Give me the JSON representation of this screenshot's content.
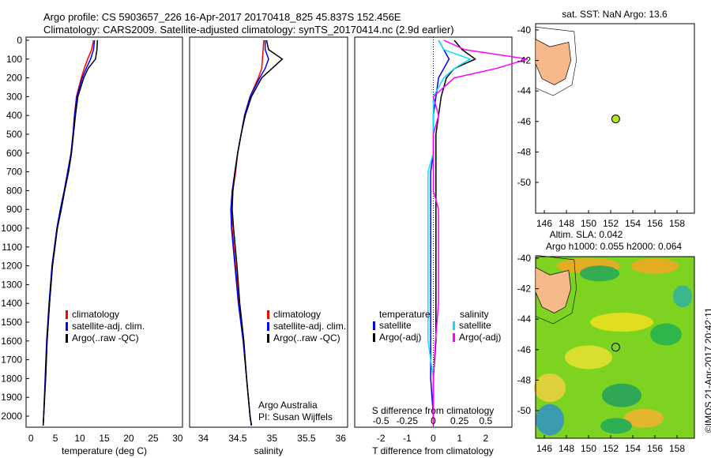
{
  "header": {
    "line1": "Argo profile: CS 5903657_226 16-Apr-2017 20170418_825 45.837S 152.456E",
    "line2": "Climatology: CARS2009. Satellite-adjusted climatology: synTS_20170414.nc (2.9d earlier)"
  },
  "colors": {
    "climatology": "#ff0000",
    "satellite": "#0000ff",
    "argo": "#000000",
    "sal_satellite": "#00e0ff",
    "sal_argo": "#ff00ff",
    "land": "#f7b98a",
    "point": "#b5e61d"
  },
  "chart_data": [
    {
      "type": "line",
      "name": "temperature",
      "xlabel": "temperature (deg C)",
      "xlim": [
        -1,
        31
      ],
      "ylim": [
        0,
        2060
      ],
      "xticks": [
        0,
        5,
        10,
        15,
        20,
        25,
        30
      ],
      "yticks": [
        0,
        100,
        200,
        300,
        400,
        500,
        600,
        700,
        800,
        900,
        1000,
        1100,
        1200,
        1300,
        1400,
        1500,
        1600,
        1700,
        1800,
        1900,
        2000
      ],
      "legend": [
        "climatology",
        "satellite-adj. clim.",
        "Argo(..raw -QC)"
      ],
      "depth": [
        0,
        50,
        100,
        150,
        200,
        300,
        400,
        500,
        600,
        700,
        800,
        900,
        1000,
        1200,
        1400,
        1600,
        1800,
        2000,
        2050
      ],
      "series": [
        {
          "name": "climatology",
          "values": [
            12.8,
            12.4,
            11.6,
            10.9,
            10.3,
            9.3,
            8.9,
            8.6,
            8.2,
            7.6,
            6.9,
            6.1,
            5.4,
            4.4,
            3.8,
            3.3,
            3.0,
            2.6,
            2.5
          ]
        },
        {
          "name": "satellite",
          "values": [
            13.0,
            12.8,
            12.2,
            11.3,
            10.5,
            9.4,
            8.9,
            8.6,
            8.2,
            7.5,
            6.8,
            6.0,
            5.3,
            4.3,
            3.7,
            3.2,
            2.9,
            2.6,
            2.5
          ]
        },
        {
          "name": "argo",
          "values": [
            13.6,
            13.5,
            13.2,
            11.7,
            10.8,
            9.6,
            9.1,
            8.7,
            8.3,
            7.7,
            6.9,
            6.2,
            5.4,
            4.4,
            3.8,
            3.3,
            3.0,
            2.6,
            2.5
          ]
        }
      ]
    },
    {
      "type": "line",
      "name": "salinity",
      "xlabel": "salinity",
      "xlim": [
        33.8,
        36.1
      ],
      "ylim": [
        0,
        2060
      ],
      "xticks": [
        34,
        34.5,
        35,
        35.5,
        36
      ],
      "legend": [
        "climatology",
        "satellite-adj. clim.",
        "Argo(..raw -QC)"
      ],
      "annotation": [
        "Argo Australia",
        "PI: Susan Wijffels"
      ],
      "depth": [
        0,
        50,
        100,
        150,
        200,
        300,
        400,
        500,
        600,
        700,
        800,
        900,
        1000,
        1200,
        1400,
        1600,
        1800,
        2000,
        2050
      ],
      "series": [
        {
          "name": "climatology",
          "values": [
            34.88,
            34.87,
            34.86,
            34.85,
            34.8,
            34.68,
            34.6,
            34.55,
            34.5,
            34.47,
            34.43,
            34.41,
            34.42,
            34.47,
            34.52,
            34.58,
            34.63,
            34.68,
            34.7
          ]
        },
        {
          "name": "satellite",
          "values": [
            34.9,
            34.9,
            34.95,
            34.9,
            34.82,
            34.68,
            34.6,
            34.55,
            34.5,
            34.46,
            34.42,
            34.4,
            34.41,
            34.46,
            34.51,
            34.58,
            34.63,
            34.68,
            34.7
          ]
        },
        {
          "name": "argo",
          "values": [
            34.92,
            34.95,
            35.15,
            35.0,
            34.85,
            34.7,
            34.61,
            34.55,
            34.5,
            34.46,
            34.43,
            34.42,
            34.44,
            34.49,
            34.53,
            34.59,
            34.63,
            34.68,
            34.7
          ]
        }
      ]
    },
    {
      "type": "line",
      "name": "difference",
      "xlabel": "T difference from climatology",
      "x2label": "S difference from climatology",
      "xlim": [
        -3,
        3
      ],
      "ylim": [
        0,
        2060
      ],
      "xticks": [
        -2,
        -1,
        0,
        1,
        2
      ],
      "x2ticks": [
        "-0.5",
        "-0.25",
        "0",
        "0.25",
        "0.5"
      ],
      "legend": {
        "temperature": "temperature",
        "satellite": "satellite",
        "argo": "Argo(-adj)",
        "salinity": "salinity"
      },
      "depth": [
        0,
        50,
        100,
        150,
        200,
        300,
        400,
        500,
        600,
        700,
        800,
        900,
        1000,
        1200,
        1400,
        1600,
        1800,
        2000,
        2050
      ],
      "series": [
        {
          "name": "T satellite",
          "values": [
            0.2,
            0.4,
            0.6,
            0.4,
            0.2,
            0.1,
            0,
            0,
            0,
            -0.1,
            -0.1,
            -0.1,
            -0.1,
            -0.1,
            -0.1,
            -0.1,
            -0.1,
            0,
            0
          ]
        },
        {
          "name": "T Argo",
          "values": [
            0.8,
            1.1,
            1.6,
            0.8,
            0.5,
            0.3,
            0.2,
            0.1,
            0.1,
            0.1,
            0.1,
            0.1,
            0.1,
            0.1,
            0.1,
            0.1,
            0,
            0,
            0
          ]
        },
        {
          "name": "S satellite",
          "values": [
            0.05,
            0.1,
            0.35,
            0.2,
            0.1,
            0,
            0,
            0,
            0,
            -0.05,
            -0.05,
            -0.05,
            -0.05,
            -0.05,
            -0.05,
            -0.05,
            0,
            0,
            0
          ]
        },
        {
          "name": "S Argo",
          "values": [
            0.1,
            0.3,
            0.9,
            0.6,
            0.2,
            0,
            0.05,
            0,
            0,
            0,
            0,
            0.05,
            0.05,
            0.05,
            0.05,
            0.02,
            0,
            0,
            0
          ]
        }
      ]
    },
    {
      "type": "map",
      "name": "sst-map",
      "title": "sat. SST: NaN Argo: 13.6",
      "lon_ticks": [
        146,
        148,
        150,
        152,
        154,
        156,
        158
      ],
      "lat_ticks": [
        -40,
        -42,
        -44,
        -46,
        -48,
        -50
      ],
      "xlim": [
        145.2,
        160
      ],
      "ylim": [
        -51.2,
        -39.6
      ],
      "point": {
        "lon": 152.456,
        "lat": -45.837
      }
    },
    {
      "type": "heatmap",
      "name": "sla-map",
      "title": "Altim. SLA: 0.042",
      "subtitle": "Argo h1000: 0.055 h2000: 0.064",
      "lon_ticks": [
        146,
        148,
        150,
        152,
        154,
        156,
        158
      ],
      "lat_ticks": [
        -40,
        -42,
        -44,
        -46,
        -48,
        -50
      ],
      "xlim": [
        145.2,
        160
      ],
      "ylim": [
        -51.7,
        -39.6
      ],
      "point": {
        "lon": 152.456,
        "lat": -45.837
      }
    }
  ],
  "footer": {
    "credit": "©IMOS 21-Apr-2017 20:42:11"
  }
}
